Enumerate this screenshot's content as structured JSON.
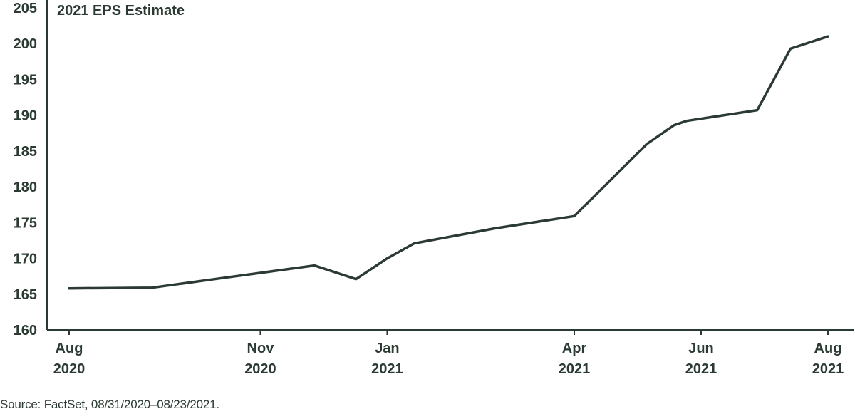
{
  "chart_data": {
    "type": "line",
    "title": "2021 EPS Estimate",
    "xlabel": "",
    "ylabel": "",
    "ylim": [
      160,
      205
    ],
    "yticks": [
      160,
      165,
      170,
      175,
      180,
      185,
      190,
      195,
      200,
      205
    ],
    "xlim": [
      "2020-08-01",
      "2021-08-01"
    ],
    "xticks": [
      {
        "date": "2020-08-01",
        "line1": "Aug",
        "line2": "2020"
      },
      {
        "date": "2020-11-01",
        "line1": "Nov",
        "line2": "2020"
      },
      {
        "date": "2021-01-01",
        "line1": "Jan",
        "line2": "2021"
      },
      {
        "date": "2021-04-01",
        "line1": "Apr",
        "line2": "2021"
      },
      {
        "date": "2021-06-01",
        "line1": "Jun",
        "line2": "2021"
      },
      {
        "date": "2021-08-01",
        "line1": "Aug",
        "line2": "2021"
      }
    ],
    "series": [
      {
        "color": "#2b3a32",
        "points": [
          {
            "x": "2020-08-01",
            "y": 165.8
          },
          {
            "x": "2020-09-10",
            "y": 165.9
          },
          {
            "x": "2020-10-15",
            "y": 167.3
          },
          {
            "x": "2020-11-27",
            "y": 169.0
          },
          {
            "x": "2020-12-17",
            "y": 167.1
          },
          {
            "x": "2021-01-01",
            "y": 170.0
          },
          {
            "x": "2021-01-14",
            "y": 172.1
          },
          {
            "x": "2021-02-22",
            "y": 174.2
          },
          {
            "x": "2021-04-01",
            "y": 175.9
          },
          {
            "x": "2021-05-06",
            "y": 186.0
          },
          {
            "x": "2021-05-19",
            "y": 188.6
          },
          {
            "x": "2021-05-25",
            "y": 189.2
          },
          {
            "x": "2021-06-28",
            "y": 190.7
          },
          {
            "x": "2021-07-14",
            "y": 199.3
          },
          {
            "x": "2021-08-01",
            "y": 201.0
          }
        ]
      }
    ]
  },
  "source_note": "Source: FactSet, 08/31/2020–08/23/2021."
}
